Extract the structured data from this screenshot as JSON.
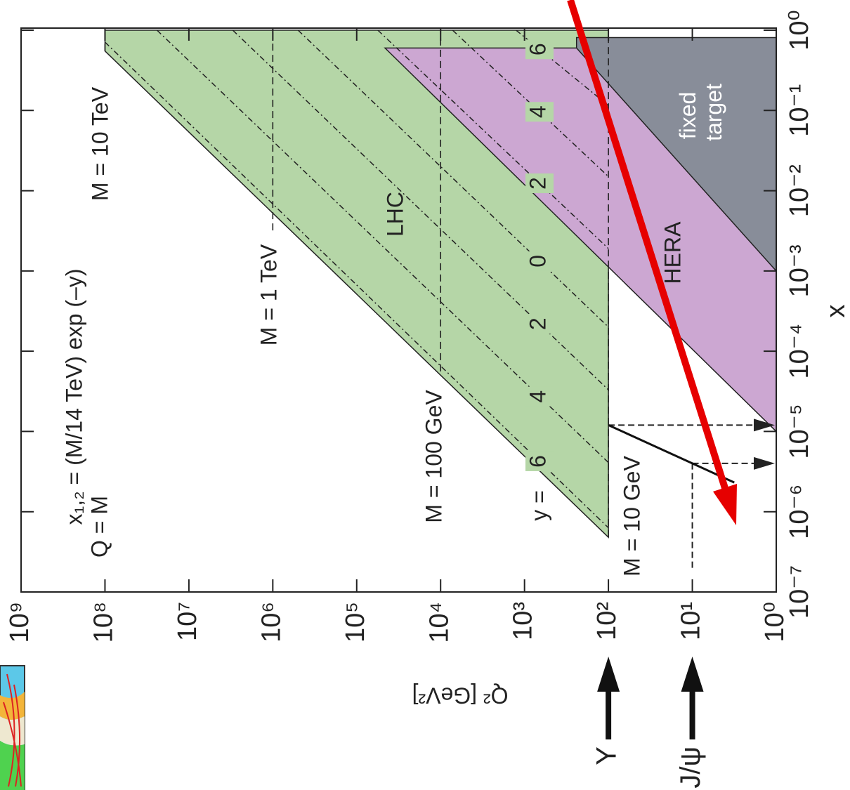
{
  "chart_data": {
    "type": "region",
    "xlabel": "x",
    "ylabel": "Q² [GeV²]",
    "log_x": true,
    "log_y": true,
    "xlim": [
      1e-07,
      1
    ],
    "ylim": [
      1,
      1000000000.0
    ],
    "xticks": [
      {
        "value": 1e-07,
        "label": "10⁻⁷"
      },
      {
        "value": 1e-06,
        "label": "10⁻⁶"
      },
      {
        "value": 1e-05,
        "label": "10⁻⁵"
      },
      {
        "value": 0.0001,
        "label": "10⁻⁴"
      },
      {
        "value": 0.001,
        "label": "10⁻³"
      },
      {
        "value": 0.01,
        "label": "10⁻²"
      },
      {
        "value": 0.1,
        "label": "10⁻¹"
      },
      {
        "value": 1,
        "label": "10⁰"
      }
    ],
    "yticks": [
      {
        "value": 1,
        "label": "10⁰"
      },
      {
        "value": 10,
        "label": "10¹"
      },
      {
        "value": 100,
        "label": "10²"
      },
      {
        "value": 1000,
        "label": "10³"
      },
      {
        "value": 10000,
        "label": "10⁴"
      },
      {
        "value": 100000,
        "label": "10⁵"
      },
      {
        "value": 1000000,
        "label": "10⁶"
      },
      {
        "value": 10000000,
        "label": "10⁷"
      },
      {
        "value": 100000000,
        "label": "10⁸"
      },
      {
        "value": 1000000000,
        "label": "10⁹"
      }
    ],
    "formula": "x₁,₂ = (M/14 TeV) exp (–y)",
    "formula2": "Q = M",
    "rapidity_label": "y =",
    "series": [
      {
        "name": "LHC",
        "color": "#b5d6a7",
        "x": [
          1,
          0.55,
          4.8e-07,
          1
        ],
        "values": [
          100000000,
          100000000,
          100,
          100
        ]
      },
      {
        "name": "HERA",
        "color": "#cca7d2",
        "x": [
          0.6,
          1e-05,
          0.6
        ],
        "values": [
          46000,
          1,
          1
        ]
      },
      {
        "name": "fixed target",
        "color": "#888d99",
        "x": [
          0.81,
          0.6,
          0.001,
          0.81
        ],
        "values": [
          240,
          240,
          1,
          1
        ]
      }
    ],
    "mass_lines": [
      {
        "label": "M = 10 TeV",
        "q2": 100000000,
        "x_min": 0.55
      },
      {
        "label": "M = 1 TeV",
        "q2": 1000000,
        "x_min": 0.0032
      },
      {
        "label": "M = 100 GeV",
        "q2": 10000,
        "x_min": 5.6e-05
      },
      {
        "label": "M = 10 GeV",
        "q2": 100,
        "x_min": 4.8e-07
      }
    ],
    "rapidity_lines": [
      {
        "label": "6",
        "x": [
          0.71,
          6.3e-07
        ],
        "values": [
          100000000,
          100
        ]
      },
      {
        "label": "4",
        "x": [
          1,
          4.1e-06
        ],
        "values": [
          24000000,
          100
        ]
      },
      {
        "label": "2",
        "x": [
          1,
          3.3e-05
        ],
        "values": [
          3000000,
          100
        ]
      },
      {
        "label": "0",
        "x": [
          1,
          0.0002
        ],
        "values": [
          500000,
          100
        ]
      },
      {
        "label": "2",
        "x": [
          1,
          0.0019
        ],
        "values": [
          56000,
          100
        ]
      },
      {
        "label": "4",
        "x": [
          1,
          0.015
        ],
        "values": [
          7200,
          100
        ]
      },
      {
        "label": "6",
        "x": [
          1,
          0.115
        ],
        "values": [
          1260,
          100
        ]
      }
    ],
    "quarkonia": [
      {
        "name": "Υ",
        "q2": 100,
        "x": 1.2e-05
      },
      {
        "name": "J/ψ",
        "q2": 10,
        "x": 4e-06,
        "x_low": 2e-07
      }
    ]
  }
}
